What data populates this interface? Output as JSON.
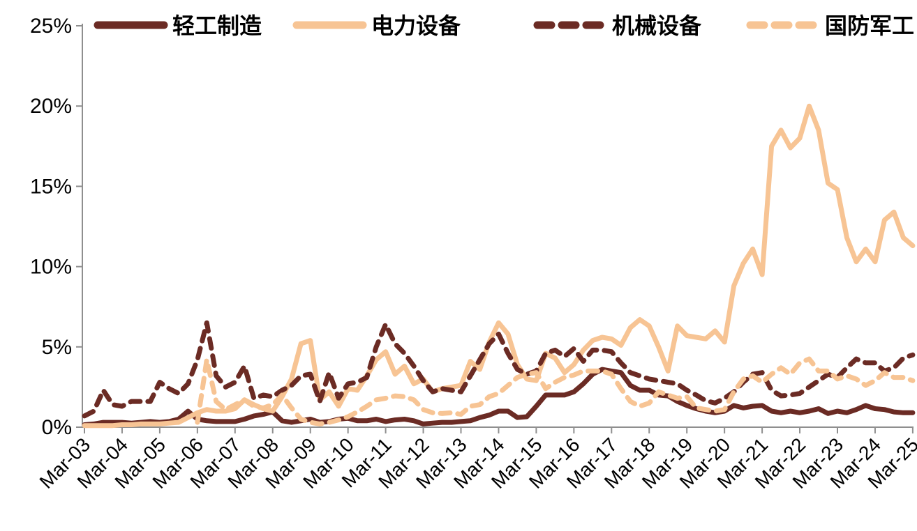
{
  "chart_data": {
    "type": "line",
    "title": "",
    "xlabel": "",
    "ylabel": "",
    "ylim": [
      0,
      25
    ],
    "grid": false,
    "legend_position": "top",
    "y_tick_labels": [
      "0%",
      "5%",
      "10%",
      "15%",
      "20%",
      "25%"
    ],
    "x_tick_labels": [
      "Mar-03",
      "Mar-04",
      "Mar-05",
      "Mar-06",
      "Mar-07",
      "Mar-08",
      "Mar-09",
      "Mar-10",
      "Mar-11",
      "Mar-12",
      "Mar-13",
      "Mar-14",
      "Mar-15",
      "Mar-16",
      "Mar-17",
      "Mar-18",
      "Mar-19",
      "Mar-20",
      "Mar-21",
      "Mar-22",
      "Mar-23",
      "Mar-24",
      "Mar-25"
    ],
    "points_per_year": 4,
    "colors": {
      "dark": "#6B2B24",
      "light": "#F7C494",
      "axis": "#8F8F8F",
      "text": "#000000"
    },
    "series": [
      {
        "name": "轻工制造",
        "color": "#6B2B24",
        "style": "solid",
        "values": [
          0.15,
          0.2,
          0.3,
          0.3,
          0.3,
          0.25,
          0.3,
          0.35,
          0.3,
          0.35,
          0.5,
          1.0,
          0.5,
          0.4,
          0.35,
          0.35,
          0.35,
          0.5,
          0.7,
          0.8,
          0.95,
          0.4,
          0.3,
          0.4,
          0.5,
          0.3,
          0.35,
          0.5,
          0.55,
          0.4,
          0.4,
          0.5,
          0.35,
          0.45,
          0.5,
          0.4,
          0.2,
          0.25,
          0.3,
          0.3,
          0.35,
          0.4,
          0.6,
          0.75,
          1.0,
          1.0,
          0.6,
          0.65,
          1.3,
          2.0,
          2.0,
          2.0,
          2.2,
          2.7,
          3.3,
          3.6,
          3.5,
          3.4,
          2.6,
          2.3,
          2.3,
          2.0,
          1.95,
          1.6,
          1.35,
          1.15,
          1.0,
          0.9,
          1.0,
          1.35,
          1.2,
          1.3,
          1.35,
          1.0,
          0.9,
          1.0,
          0.9,
          1.0,
          1.15,
          0.85,
          1.0,
          0.9,
          1.1,
          1.35,
          1.15,
          1.1,
          0.95,
          0.9,
          0.9
        ]
      },
      {
        "name": "电力设备",
        "color": "#F7C494",
        "style": "solid",
        "values": [
          0.1,
          0.1,
          0.1,
          0.1,
          0.15,
          0.15,
          0.2,
          0.2,
          0.2,
          0.25,
          0.3,
          0.6,
          0.9,
          1.1,
          1.0,
          1.0,
          1.15,
          1.7,
          1.4,
          1.15,
          1.0,
          1.9,
          3.0,
          5.2,
          5.4,
          1.7,
          2.2,
          1.3,
          2.4,
          2.3,
          3.2,
          4.2,
          4.7,
          3.3,
          3.8,
          2.7,
          3.0,
          2.2,
          2.4,
          2.5,
          2.6,
          4.1,
          3.6,
          5.3,
          6.5,
          5.8,
          3.9,
          3.0,
          2.9,
          4.6,
          4.3,
          3.4,
          3.9,
          4.8,
          5.4,
          5.6,
          5.5,
          5.1,
          6.2,
          6.7,
          6.3,
          5.0,
          3.5,
          6.3,
          5.7,
          5.6,
          5.5,
          6.0,
          5.3,
          8.8,
          10.2,
          11.1,
          9.5,
          17.5,
          18.5,
          17.4,
          18.0,
          20.0,
          18.5,
          15.2,
          14.8,
          11.8,
          10.3,
          11.1,
          10.3,
          12.9,
          13.4,
          11.8,
          11.3
        ]
      },
      {
        "name": "机械设备",
        "color": "#6B2B24",
        "style": "dashed",
        "values": [
          0.7,
          1.0,
          2.3,
          1.4,
          1.3,
          1.6,
          1.6,
          1.6,
          2.8,
          2.4,
          2.1,
          2.7,
          4.2,
          6.5,
          3.2,
          2.5,
          2.8,
          3.8,
          1.8,
          2.0,
          1.9,
          2.3,
          2.6,
          3.2,
          3.3,
          1.6,
          3.4,
          1.8,
          2.7,
          2.8,
          3.1,
          5.0,
          6.4,
          5.2,
          4.6,
          3.8,
          2.9,
          2.2,
          2.4,
          2.3,
          2.2,
          3.2,
          4.2,
          5.2,
          5.8,
          4.6,
          3.6,
          3.3,
          3.5,
          4.6,
          4.8,
          4.4,
          4.9,
          4.1,
          4.8,
          4.8,
          4.7,
          4.0,
          3.4,
          3.2,
          3.0,
          2.9,
          2.8,
          2.7,
          2.3,
          2.0,
          1.65,
          1.5,
          1.8,
          2.2,
          2.8,
          3.3,
          3.4,
          2.3,
          1.95,
          2.0,
          2.1,
          2.5,
          2.9,
          3.3,
          3.1,
          3.7,
          4.25,
          4.0,
          4.0,
          3.5,
          3.7,
          4.3,
          4.5
        ]
      },
      {
        "name": "国防军工",
        "color": "#F7C494",
        "style": "dashed",
        "values": [
          null,
          null,
          null,
          null,
          null,
          null,
          null,
          null,
          null,
          null,
          null,
          null,
          0.3,
          4.2,
          1.6,
          1.1,
          1.4,
          1.7,
          1.3,
          1.2,
          1.4,
          2.0,
          1.2,
          0.5,
          0.3,
          0.2,
          0.3,
          0.45,
          0.65,
          0.95,
          1.3,
          1.7,
          1.8,
          1.95,
          1.9,
          1.7,
          1.1,
          0.9,
          0.85,
          0.9,
          0.8,
          1.3,
          1.4,
          1.9,
          2.1,
          2.6,
          3.1,
          3.3,
          3.4,
          2.4,
          2.8,
          3.1,
          3.25,
          3.5,
          3.5,
          3.5,
          3.3,
          2.4,
          1.6,
          1.3,
          1.5,
          2.2,
          2.0,
          1.8,
          1.9,
          1.2,
          1.1,
          1.0,
          1.1,
          2.2,
          3.0,
          3.2,
          2.8,
          3.3,
          3.7,
          3.3,
          4.0,
          4.25,
          3.5,
          3.5,
          3.0,
          3.2,
          3.0,
          2.6,
          2.9,
          3.4,
          3.1,
          3.1,
          2.9
        ]
      }
    ]
  }
}
